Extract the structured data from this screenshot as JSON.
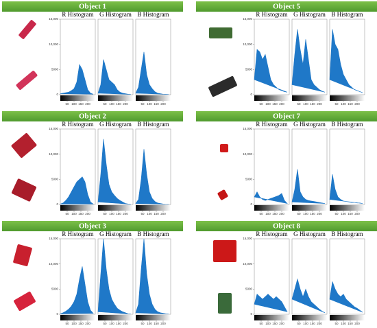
{
  "axes": {
    "x": [
      0,
      20,
      40,
      60,
      80,
      100,
      120,
      140,
      160,
      180,
      200,
      220,
      240
    ],
    "xlim": [
      0,
      255
    ],
    "xticks": [
      50,
      100,
      150,
      200
    ],
    "ylim": [
      0,
      15000
    ],
    "yticks": [
      0,
      5000,
      {
        "value": 10000,
        "label": "10,000"
      },
      {
        "value": 15000,
        "label": "15,000"
      }
    ],
    "color": "#1f78c8"
  },
  "panels": [
    {
      "title": "Object 1",
      "charts": [
        {
          "type": "area",
          "title": "R Histogram",
          "values": [
            200,
            300,
            400,
            500,
            800,
            1200,
            2500,
            6000,
            5000,
            3000,
            1000,
            300,
            100
          ]
        },
        {
          "type": "area",
          "title": "G Histogram",
          "values": [
            300,
            2000,
            7000,
            5000,
            3000,
            2500,
            2000,
            1000,
            500,
            300,
            200,
            100,
            50
          ]
        },
        {
          "type": "area",
          "title": "B Histogram",
          "values": [
            300,
            1500,
            5000,
            8500,
            4000,
            2000,
            1200,
            600,
            300,
            200,
            100,
            50,
            50
          ]
        }
      ]
    },
    {
      "title": "Object 5",
      "charts": [
        {
          "type": "area",
          "title": "R Histogram",
          "values": [
            3000,
            9000,
            8500,
            7000,
            8000,
            5500,
            3000,
            2000,
            1500,
            1000,
            800,
            600,
            500
          ]
        },
        {
          "type": "area",
          "title": "G Histogram",
          "values": [
            2000,
            8000,
            13000,
            9000,
            6000,
            11000,
            7000,
            3000,
            2000,
            1500,
            1000,
            700,
            500
          ]
        },
        {
          "type": "area",
          "title": "B Histogram",
          "values": [
            3000,
            13000,
            10000,
            9000,
            6000,
            4000,
            3000,
            2000,
            1500,
            1000,
            800,
            600,
            400
          ]
        }
      ]
    },
    {
      "title": "Object 2",
      "charts": [
        {
          "type": "area",
          "title": "R Histogram",
          "values": [
            100,
            300,
            800,
            1500,
            2500,
            3500,
            4500,
            5000,
            5500,
            4500,
            2000,
            500,
            100
          ]
        },
        {
          "type": "area",
          "title": "G Histogram",
          "values": [
            500,
            6000,
            13000,
            8000,
            4000,
            2500,
            1800,
            1200,
            800,
            500,
            200,
            100,
            50
          ]
        },
        {
          "type": "area",
          "title": "B Histogram",
          "values": [
            200,
            1000,
            5000,
            11000,
            6000,
            2500,
            1200,
            600,
            300,
            200,
            100,
            50,
            50
          ]
        }
      ]
    },
    {
      "title": "Object 7",
      "charts": [
        {
          "type": "area",
          "title": "R Histogram",
          "values": [
            1500,
            2500,
            1500,
            1000,
            800,
            1000,
            1200,
            1400,
            1600,
            1800,
            2200,
            800,
            200
          ]
        },
        {
          "type": "area",
          "title": "G Histogram",
          "values": [
            500,
            3000,
            7000,
            2500,
            1500,
            1000,
            800,
            700,
            600,
            500,
            400,
            300,
            200
          ]
        },
        {
          "type": "area",
          "title": "B Histogram",
          "values": [
            1000,
            6000,
            3000,
            1500,
            1000,
            700,
            600,
            500,
            400,
            400,
            300,
            300,
            200
          ]
        }
      ]
    },
    {
      "title": "Object 3",
      "charts": [
        {
          "type": "area",
          "title": "R Histogram",
          "values": [
            100,
            300,
            600,
            1000,
            1600,
            2500,
            4000,
            7000,
            9500,
            6000,
            2500,
            800,
            200
          ]
        },
        {
          "type": "area",
          "title": "G Histogram",
          "values": [
            500,
            8000,
            15000,
            9000,
            5000,
            3000,
            2000,
            1200,
            800,
            500,
            300,
            100,
            50
          ]
        },
        {
          "type": "area",
          "title": "B Histogram",
          "values": [
            300,
            2000,
            9000,
            15000,
            8000,
            4000,
            2000,
            1000,
            500,
            300,
            200,
            100,
            50
          ]
        }
      ]
    },
    {
      "title": "Object 8",
      "charts": [
        {
          "type": "area",
          "title": "R Histogram",
          "values": [
            2000,
            4000,
            3500,
            3000,
            3500,
            4000,
            3500,
            3000,
            3500,
            3000,
            2500,
            1500,
            500
          ]
        },
        {
          "type": "area",
          "title": "G Histogram",
          "values": [
            3000,
            5000,
            7000,
            5000,
            3500,
            5000,
            3500,
            2500,
            2000,
            1500,
            1000,
            600,
            300
          ]
        },
        {
          "type": "area",
          "title": "B Histogram",
          "values": [
            3000,
            6500,
            5000,
            4000,
            3500,
            4000,
            3000,
            2500,
            2000,
            1500,
            1200,
            800,
            400
          ]
        }
      ]
    }
  ]
}
